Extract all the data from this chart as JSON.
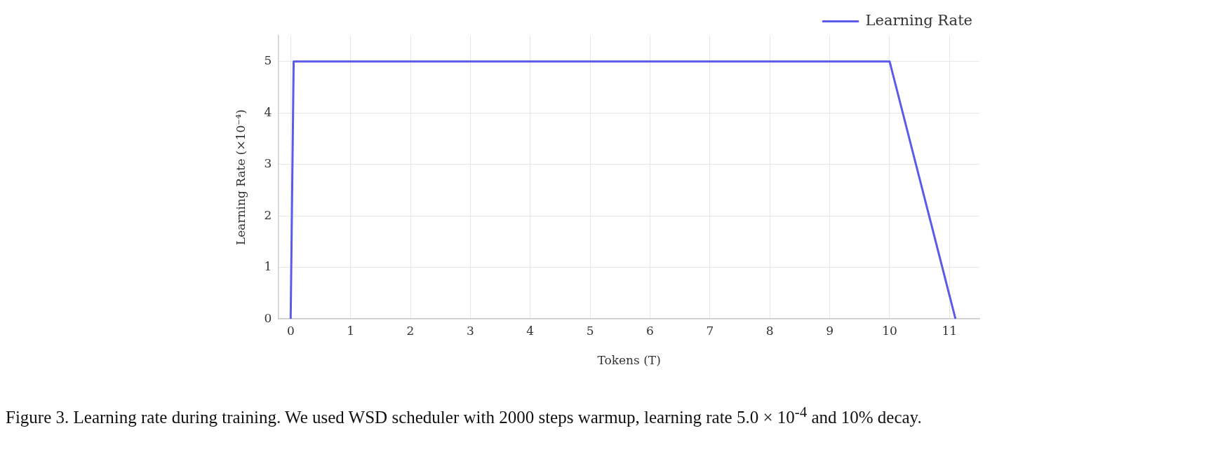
{
  "chart_data": {
    "type": "line",
    "xlabel": "Tokens (T)",
    "ylabel": "Learning Rate (×10⁻⁴)",
    "series": [
      {
        "name": "Learning Rate",
        "color": "#5b5bea",
        "x": [
          0,
          0.05,
          10,
          11.1
        ],
        "values": [
          0,
          5,
          5,
          0
        ]
      }
    ],
    "xlim": [
      -0.2,
      11.5
    ],
    "xticks": [
      0,
      1,
      2,
      3,
      4,
      5,
      6,
      7,
      8,
      9,
      10,
      11
    ],
    "ylim": [
      0,
      5.5
    ],
    "yticks": [
      0,
      1,
      2,
      3,
      4,
      5
    ],
    "grid": true,
    "legend": "top right",
    "marker": "none",
    "line_style": "solid",
    "annotations": [
      "Figure 3. Learning rate during training. We used WSD scheduler with 2000 steps warmup, learning rate 5.0 × 10$^{-4}$ and 10% decay."
    ]
  }
}
